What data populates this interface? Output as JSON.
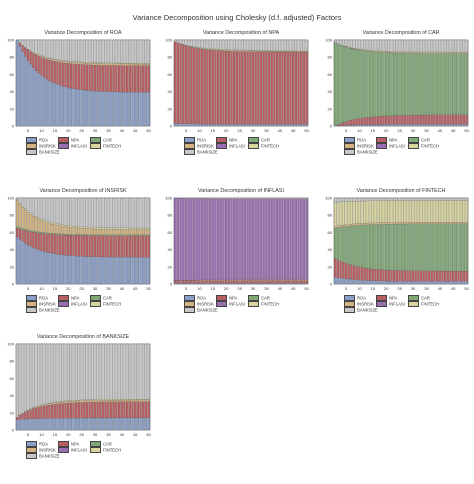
{
  "figure": {
    "title": "Variance Decomposition using Cholesky (d.f. adjusted) Factors"
  },
  "colors": {
    "ROA": "#8a9fc8",
    "NPA": "#b85f63",
    "CAR": "#7fa876",
    "INSRISK": "#d4b383",
    "INFLASI": "#9a6fb1",
    "FINTECH": "#d8d49e",
    "BANKSIZE": "#c8c8c8"
  },
  "legend_order": [
    "ROA",
    "NPA",
    "CAR",
    "INSRISK",
    "INFLASI",
    "FINTECH",
    "BANKSIZE"
  ],
  "chart_data": [
    {
      "type": "area",
      "title": "Variance Decomposition of ROA",
      "x": [
        1,
        50
      ],
      "xticks": [
        "5",
        "10",
        "15",
        "20",
        "25",
        "30",
        "35",
        "40",
        "45",
        "50"
      ],
      "yticks": [
        "0",
        "20",
        "40",
        "60",
        "80",
        "100"
      ],
      "ylim": [
        0,
        100
      ],
      "series": [
        {
          "name": "ROA",
          "start": 100,
          "end": 39
        },
        {
          "name": "NPA",
          "start": 0,
          "end": 31
        },
        {
          "name": "CAR",
          "start": 0,
          "end": 0
        },
        {
          "name": "INSRISK",
          "start": 0,
          "end": 2
        },
        {
          "name": "INFLASI",
          "start": 0,
          "end": 0
        },
        {
          "name": "FINTECH",
          "start": 0,
          "end": 1
        },
        {
          "name": "BANKSIZE",
          "start": 0,
          "end": 27
        }
      ]
    },
    {
      "type": "area",
      "title": "Variance Decomposition of NPA",
      "x": [
        1,
        50
      ],
      "xticks": [
        "5",
        "10",
        "15",
        "20",
        "25",
        "30",
        "35",
        "40",
        "45",
        "50"
      ],
      "yticks": [
        "0",
        "20",
        "40",
        "60",
        "80",
        "100"
      ],
      "ylim": [
        0,
        100
      ],
      "series": [
        {
          "name": "ROA",
          "start": 3,
          "end": 2
        },
        {
          "name": "NPA",
          "start": 95,
          "end": 84
        },
        {
          "name": "CAR",
          "start": 0,
          "end": 0
        },
        {
          "name": "INSRISK",
          "start": 0,
          "end": 1
        },
        {
          "name": "INFLASI",
          "start": 0,
          "end": 0
        },
        {
          "name": "FINTECH",
          "start": 0,
          "end": 1
        },
        {
          "name": "BANKSIZE",
          "start": 2,
          "end": 12
        }
      ]
    },
    {
      "type": "area",
      "title": "Variance Decomposition of CAR",
      "x": [
        1,
        50
      ],
      "xticks": [
        "5",
        "10",
        "15",
        "20",
        "25",
        "30",
        "35",
        "40",
        "45",
        "50"
      ],
      "yticks": [
        "0",
        "20",
        "40",
        "60",
        "80",
        "100"
      ],
      "ylim": [
        0,
        100
      ],
      "series": [
        {
          "name": "ROA",
          "start": 0,
          "end": 2
        },
        {
          "name": "NPA",
          "start": 0,
          "end": 11
        },
        {
          "name": "CAR",
          "start": 97,
          "end": 71
        },
        {
          "name": "INSRISK",
          "start": 0,
          "end": 1
        },
        {
          "name": "INFLASI",
          "start": 0,
          "end": 0
        },
        {
          "name": "FINTECH",
          "start": 0,
          "end": 1
        },
        {
          "name": "BANKSIZE",
          "start": 3,
          "end": 14
        }
      ]
    },
    {
      "type": "area",
      "title": "Variance Decomposition of INSRISK",
      "x": [
        1,
        50
      ],
      "xticks": [
        "5",
        "10",
        "15",
        "20",
        "25",
        "30",
        "35",
        "40",
        "45",
        "50"
      ],
      "yticks": [
        "0",
        "20",
        "40",
        "60",
        "80",
        "100"
      ],
      "ylim": [
        0,
        100
      ],
      "series": [
        {
          "name": "ROA",
          "start": 55,
          "end": 31
        },
        {
          "name": "NPA",
          "start": 10,
          "end": 25
        },
        {
          "name": "CAR",
          "start": 2,
          "end": 1
        },
        {
          "name": "INSRISK",
          "start": 30,
          "end": 6
        },
        {
          "name": "INFLASI",
          "start": 0,
          "end": 0
        },
        {
          "name": "FINTECH",
          "start": 1,
          "end": 2
        },
        {
          "name": "BANKSIZE",
          "start": 2,
          "end": 35
        }
      ]
    },
    {
      "type": "area",
      "title": "Variance Decomposition of INFLASI",
      "x": [
        1,
        50
      ],
      "xticks": [
        "5",
        "10",
        "15",
        "20",
        "25",
        "30",
        "35",
        "40",
        "45",
        "50"
      ],
      "yticks": [
        "0",
        "20",
        "40",
        "60",
        "80",
        "100"
      ],
      "ylim": [
        0,
        100
      ],
      "series": [
        {
          "name": "ROA",
          "start": 1,
          "end": 1
        },
        {
          "name": "NPA",
          "start": 3,
          "end": 3
        },
        {
          "name": "CAR",
          "start": 0,
          "end": 0
        },
        {
          "name": "INSRISK",
          "start": 0,
          "end": 1
        },
        {
          "name": "INFLASI",
          "start": 96,
          "end": 94
        },
        {
          "name": "FINTECH",
          "start": 0,
          "end": 0
        },
        {
          "name": "BANKSIZE",
          "start": 0,
          "end": 1
        }
      ]
    },
    {
      "type": "area",
      "title": "Variance Decomposition of FINTECH",
      "x": [
        1,
        50
      ],
      "xticks": [
        "5",
        "10",
        "15",
        "20",
        "25",
        "30",
        "35",
        "40",
        "45",
        "50"
      ],
      "yticks": [
        "0",
        "20",
        "40",
        "60",
        "80",
        "100"
      ],
      "ylim": [
        0,
        100
      ],
      "series": [
        {
          "name": "ROA",
          "start": 8,
          "end": 3
        },
        {
          "name": "NPA",
          "start": 22,
          "end": 12
        },
        {
          "name": "CAR",
          "start": 35,
          "end": 55
        },
        {
          "name": "INSRISK",
          "start": 2,
          "end": 2
        },
        {
          "name": "INFLASI",
          "start": 0,
          "end": 0
        },
        {
          "name": "FINTECH",
          "start": 28,
          "end": 25
        },
        {
          "name": "BANKSIZE",
          "start": 5,
          "end": 3
        }
      ]
    },
    {
      "type": "area",
      "title": "Variance Decomposition of BANKSIZE",
      "x": [
        1,
        50
      ],
      "xticks": [
        "5",
        "10",
        "15",
        "20",
        "25",
        "30",
        "35",
        "40",
        "45",
        "50"
      ],
      "yticks": [
        "0",
        "20",
        "40",
        "60",
        "80",
        "100"
      ],
      "ylim": [
        0,
        100
      ],
      "series": [
        {
          "name": "ROA",
          "start": 12,
          "end": 14
        },
        {
          "name": "NPA",
          "start": 3,
          "end": 19
        },
        {
          "name": "CAR",
          "start": 0,
          "end": 0
        },
        {
          "name": "INSRISK",
          "start": 0,
          "end": 2
        },
        {
          "name": "INFLASI",
          "start": 0,
          "end": 0
        },
        {
          "name": "FINTECH",
          "start": 0,
          "end": 1
        },
        {
          "name": "BANKSIZE",
          "start": 85,
          "end": 64
        }
      ]
    }
  ]
}
